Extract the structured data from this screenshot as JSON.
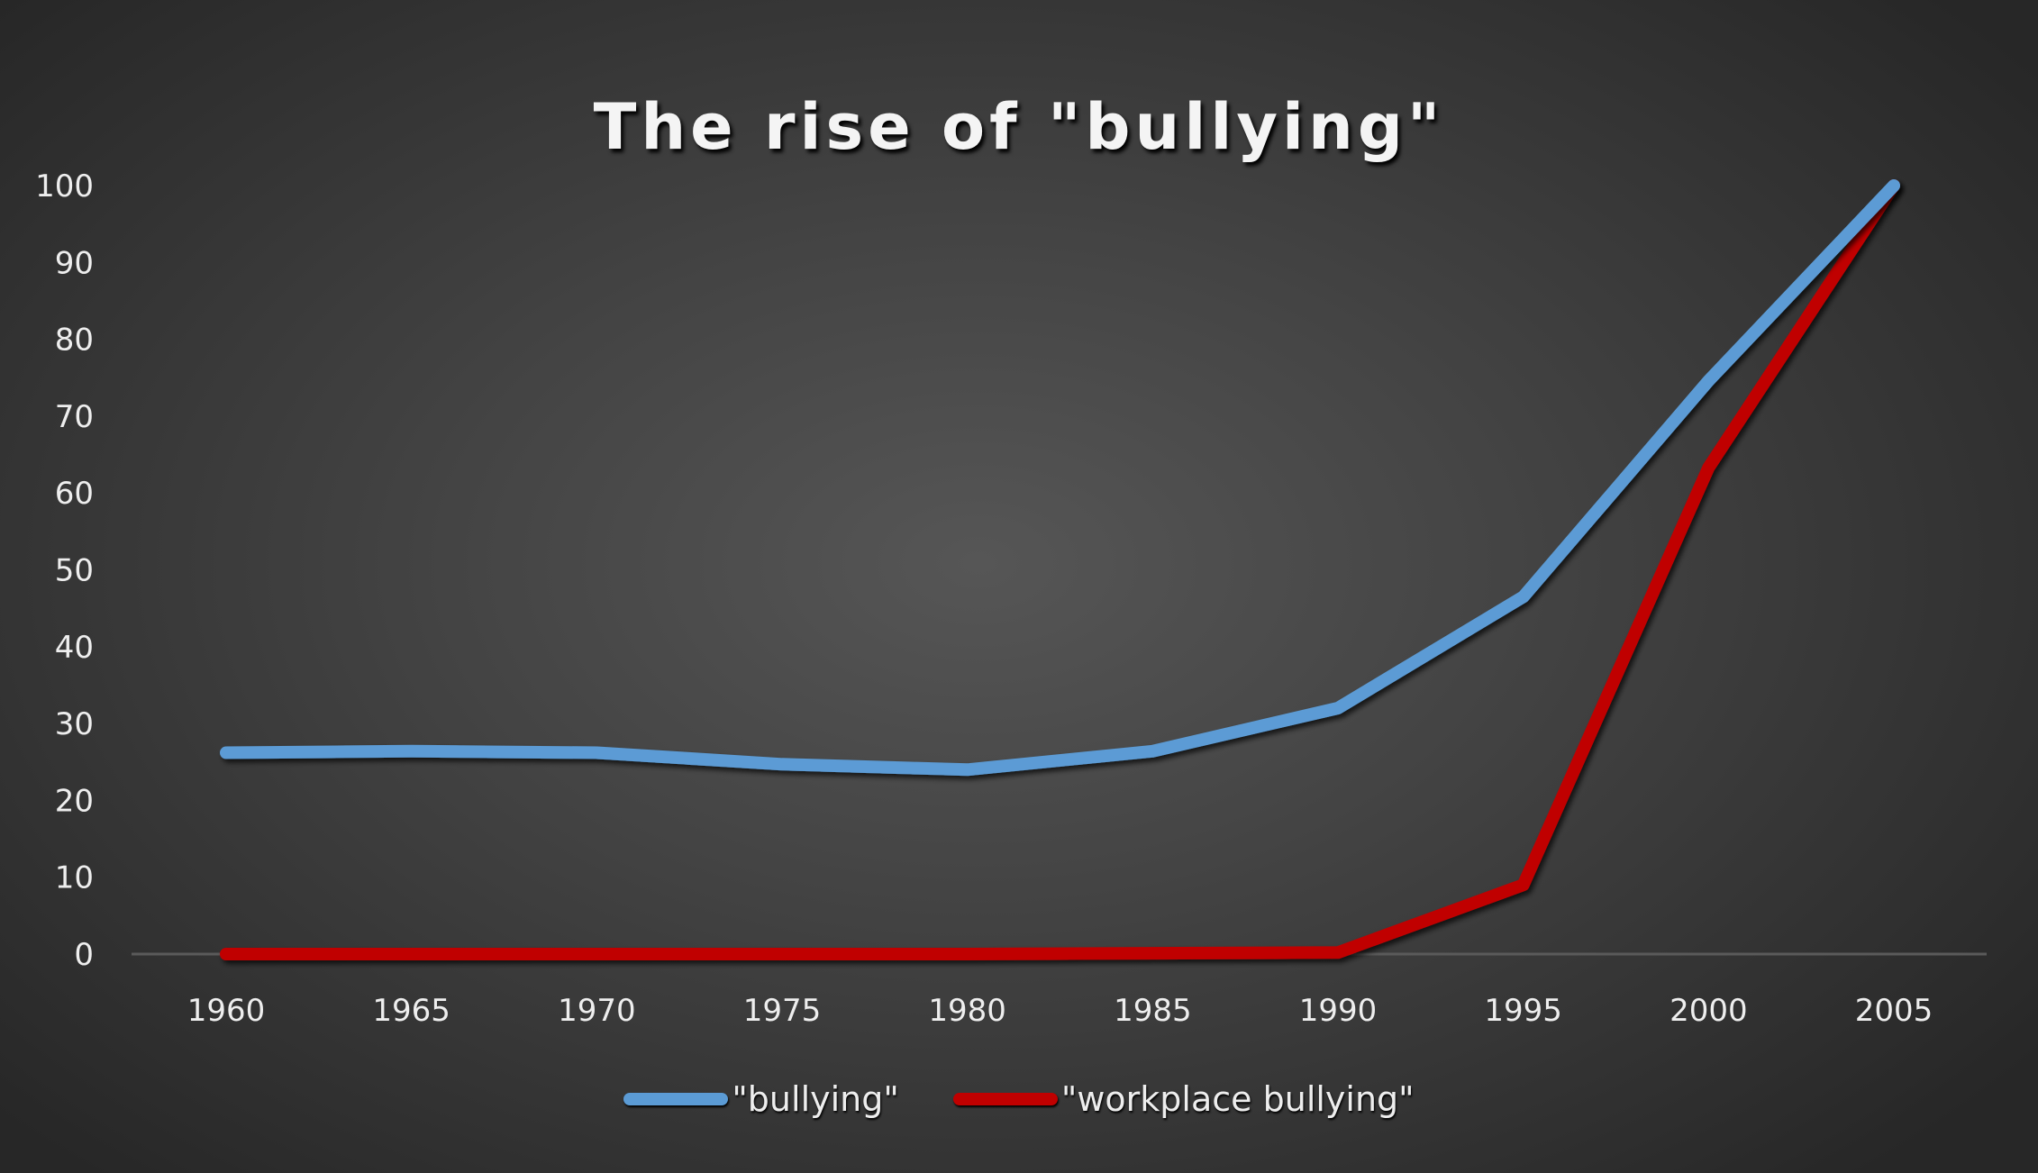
{
  "chart_data": {
    "type": "line",
    "title": "The rise of \"bullying\"",
    "xlabel": "",
    "ylabel": "",
    "categories": [
      "1960",
      "1965",
      "1970",
      "1975",
      "1980",
      "1985",
      "1990",
      "1995",
      "2000",
      "2005"
    ],
    "series": [
      {
        "name": "\"bullying\"",
        "color": "#5B9BD5",
        "values": [
          26.2,
          26.4,
          26.2,
          24.7,
          24.0,
          26.4,
          32.0,
          46.5,
          74.6,
          100
        ]
      },
      {
        "name": "\"workplace bullying\"",
        "color": "#C00000",
        "values": [
          0,
          0,
          0,
          0,
          0,
          0.1,
          0.2,
          9.0,
          63.3,
          100
        ]
      }
    ],
    "yticks": [
      0,
      10,
      20,
      30,
      40,
      50,
      60,
      70,
      80,
      90,
      100
    ],
    "ylim": [
      0,
      100
    ],
    "grid": false,
    "legend_position": "bottom"
  },
  "legend": {
    "items": [
      {
        "label": "\"bullying\"",
        "color": "#5B9BD5"
      },
      {
        "label": "\"workplace bullying\"",
        "color": "#C00000"
      }
    ]
  }
}
